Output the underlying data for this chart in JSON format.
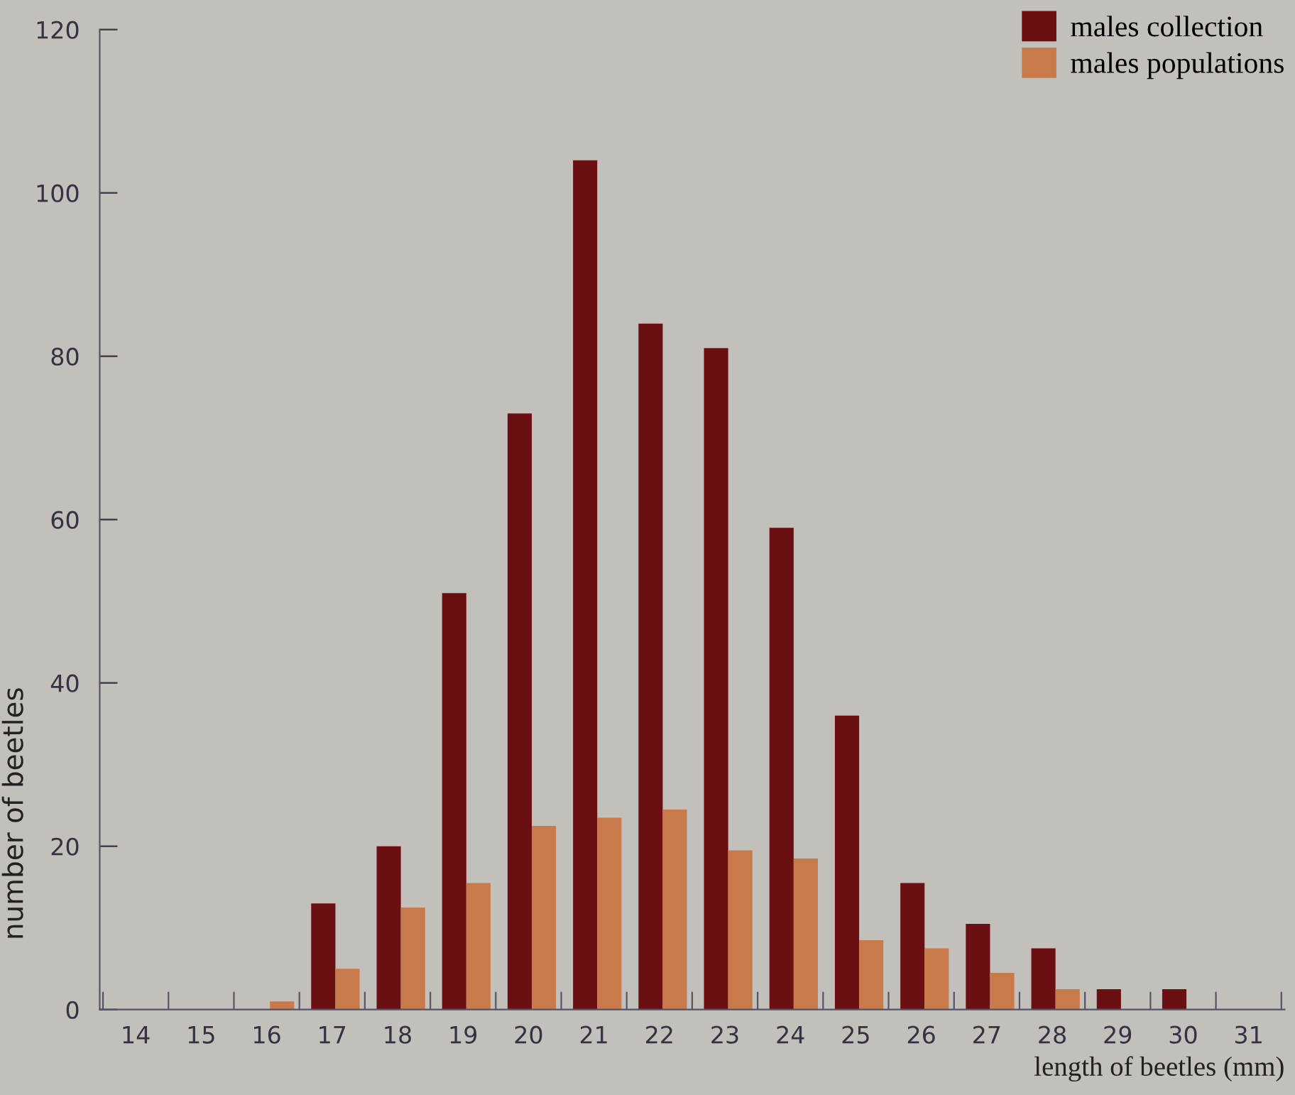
{
  "chart_data": {
    "type": "bar",
    "xlabel": "length of beetles (mm)",
    "ylabel": "number of beetles",
    "categories": [
      "14",
      "15",
      "16",
      "17",
      "18",
      "19",
      "20",
      "21",
      "22",
      "23",
      "24",
      "25",
      "26",
      "27",
      "28",
      "29",
      "30",
      "31"
    ],
    "series": [
      {
        "name": "males collection",
        "color": "#6b0f12",
        "values": [
          0,
          0,
          0,
          13,
          20,
          51,
          73,
          104,
          84,
          81,
          59,
          36,
          15.5,
          10.5,
          7.5,
          2.5,
          2.5,
          0
        ]
      },
      {
        "name": "males populations",
        "color": "#c87a4a",
        "values": [
          0,
          0,
          1,
          5,
          12.5,
          15.5,
          22.5,
          23.5,
          24.5,
          19.5,
          18.5,
          8.5,
          7.5,
          4.5,
          2.5,
          0,
          0,
          0
        ]
      }
    ],
    "ylim": [
      0,
      120
    ],
    "yticks": [
      0,
      20,
      40,
      60,
      80,
      100,
      120
    ],
    "grid": false,
    "legend": "top right"
  }
}
